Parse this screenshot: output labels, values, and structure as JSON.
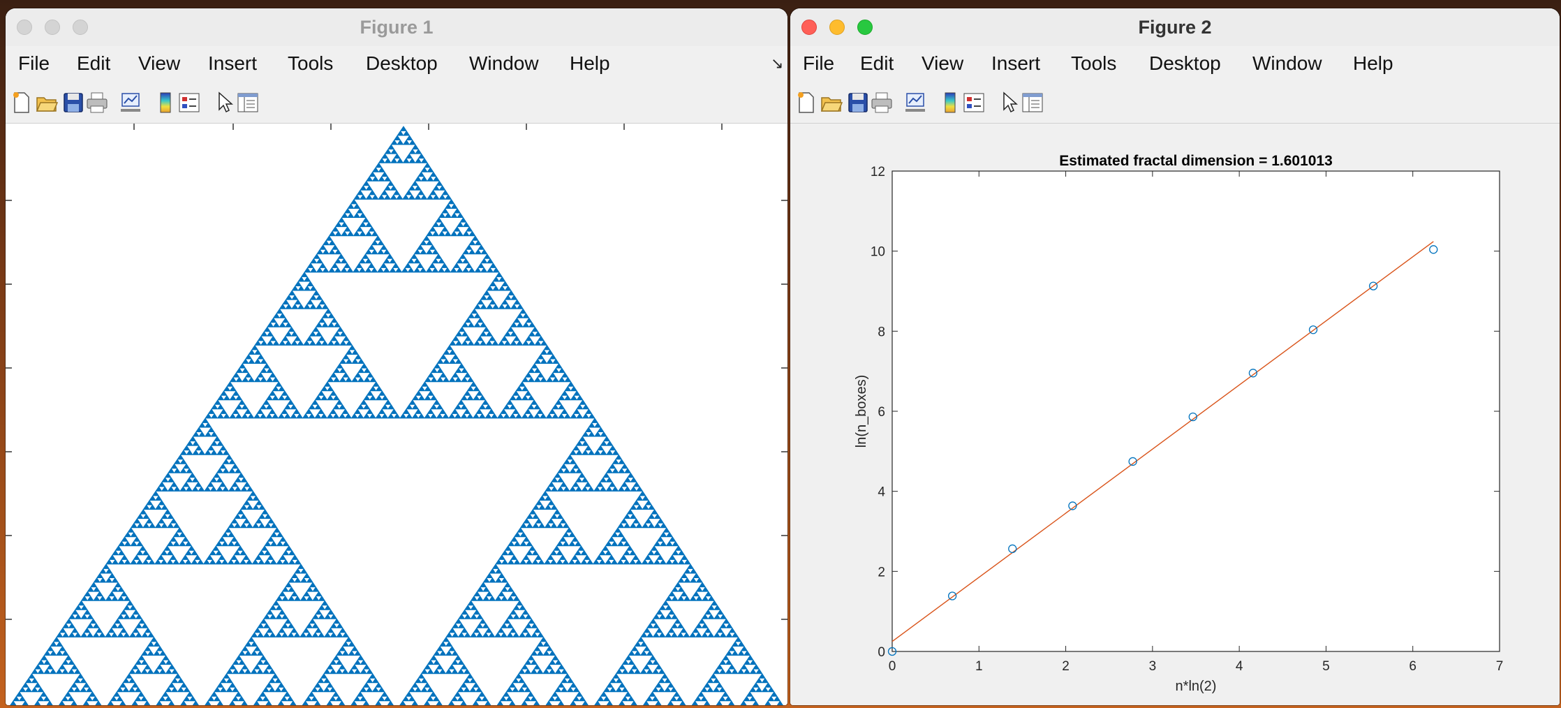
{
  "figure1": {
    "title": "Figure 1",
    "menu": [
      "File",
      "Edit",
      "View",
      "Insert",
      "Tools",
      "Desktop",
      "Window",
      "Help"
    ]
  },
  "figure2": {
    "title": "Figure 2",
    "menu": [
      "File",
      "Edit",
      "View",
      "Insert",
      "Tools",
      "Desktop",
      "Window",
      "Help"
    ]
  },
  "toolbar_icons": [
    "new-figure-icon",
    "open-file-icon",
    "save-icon",
    "print-icon",
    "link-plot-icon",
    "colorbar-icon",
    "legend-icon",
    "pointer-icon",
    "property-inspector-icon"
  ],
  "colors": {
    "fractal": "#0072BD",
    "markers": "#0072BD",
    "fit_line": "#D95319"
  },
  "chart_data": [
    {
      "type": "scatter",
      "figure": "Figure 1",
      "description_points": "Sierpinski triangle chaos-game points",
      "title": "",
      "xlabel": "",
      "ylabel": ""
    },
    {
      "type": "scatter",
      "figure": "Figure 2",
      "title": "Estimated fractal dimension = 1.601013",
      "xlabel": "n*ln(2)",
      "ylabel": "ln(n_boxes)",
      "xlim": [
        0,
        7
      ],
      "ylim": [
        0,
        12
      ],
      "xticks": [
        "0",
        "1",
        "2",
        "3",
        "4",
        "5",
        "6",
        "7"
      ],
      "yticks": [
        "0",
        "2",
        "4",
        "6",
        "8",
        "10",
        "12"
      ],
      "grid": false,
      "series": [
        {
          "marker": "circle",
          "x": [
            0,
            0.693,
            1.386,
            2.079,
            2.773,
            3.466,
            4.159,
            4.852,
            5.545,
            6.238
          ],
          "y": [
            0,
            1.386,
            2.565,
            3.638,
            4.745,
            5.861,
            6.954,
            8.036,
            9.129,
            10.041
          ]
        },
        {
          "line": "fit",
          "x": [
            0,
            6.238
          ],
          "y": [
            0.25,
            10.24
          ]
        }
      ]
    }
  ]
}
